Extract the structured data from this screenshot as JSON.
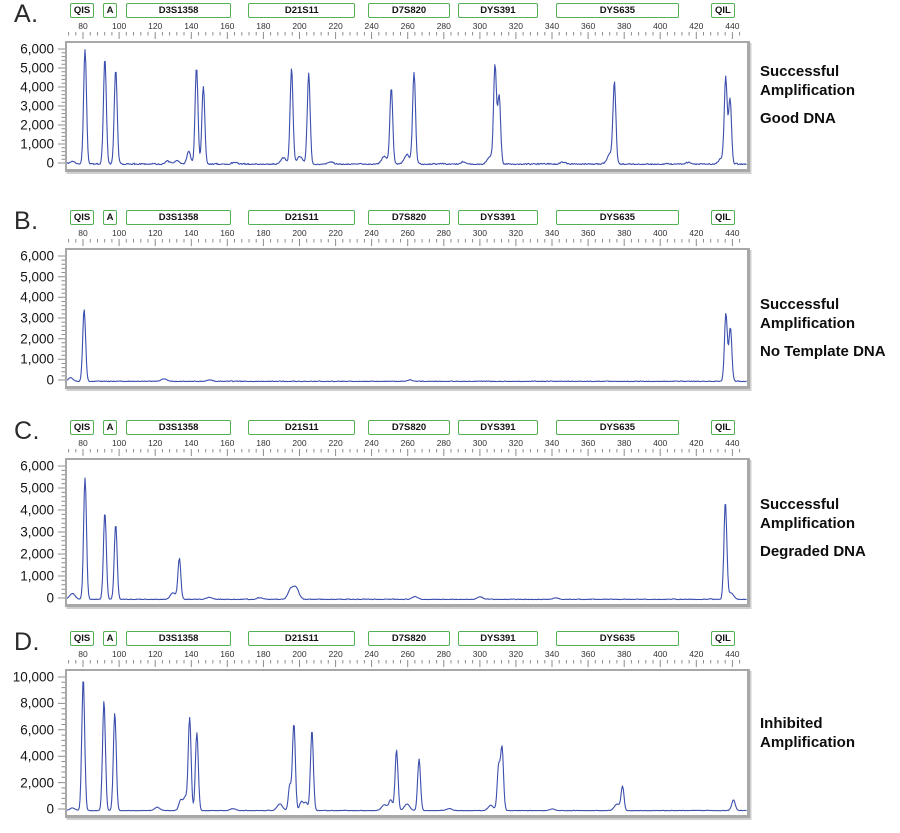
{
  "colors": {
    "trace": "#3c4fae",
    "marker_border": "#52b152",
    "frame_gray": "#a8a8a8",
    "tick_gray": "#8c8c8c"
  },
  "x_axis": {
    "domain": [
      70,
      447
    ],
    "tick_values": [
      80,
      100,
      120,
      140,
      160,
      180,
      200,
      220,
      240,
      260,
      280,
      300,
      320,
      340,
      360,
      380,
      400,
      420,
      440
    ],
    "minor_step": 4
  },
  "markers": [
    {
      "label": "QIS",
      "start": 73,
      "end": 86
    },
    {
      "label": "A",
      "start": 91,
      "end": 99
    },
    {
      "label": "D3S1358",
      "start": 104,
      "end": 162
    },
    {
      "label": "D21S11",
      "start": 171.5,
      "end": 231
    },
    {
      "label": "D7S820",
      "start": 238,
      "end": 283.5
    },
    {
      "label": "DYS391",
      "start": 288,
      "end": 332
    },
    {
      "label": "DYS635",
      "start": 342,
      "end": 410.5
    },
    {
      "label": "QIL",
      "start": 428,
      "end": 441.5
    }
  ],
  "chart_data": [
    {
      "type": "line",
      "panel_label": "A.",
      "annotation": [
        "Successful Amplification",
        "Good DNA"
      ],
      "xlim": [
        70,
        447
      ],
      "ylim": [
        0,
        6000
      ],
      "y_tick_labels": [
        "6,000",
        "5,000",
        "4,000",
        "3,000",
        "2,000",
        "1,000",
        "0"
      ],
      "y_tick_values": [
        6000,
        5000,
        4000,
        3000,
        2000,
        1000,
        0
      ],
      "grid": false,
      "noise_amp": 120,
      "seed": 7,
      "peaks": [
        [
          73,
          160
        ],
        [
          80,
          6000
        ],
        [
          91,
          5550
        ],
        [
          97,
          5000
        ],
        [
          126,
          130
        ],
        [
          131,
          180
        ],
        [
          137.5,
          700
        ],
        [
          141.8,
          5100
        ],
        [
          145.6,
          4100
        ],
        [
          163,
          90
        ],
        [
          190,
          330
        ],
        [
          194.5,
          5050
        ],
        [
          199,
          400
        ],
        [
          204,
          4800
        ],
        [
          216,
          120
        ],
        [
          246,
          420
        ],
        [
          249.8,
          4000
        ],
        [
          258.5,
          480
        ],
        [
          262.4,
          4800
        ],
        [
          290,
          120
        ],
        [
          304.5,
          380
        ],
        [
          307.3,
          5150
        ],
        [
          309.6,
          3600
        ],
        [
          345,
          100
        ],
        [
          371,
          550
        ],
        [
          373.5,
          4200
        ],
        [
          415,
          90
        ],
        [
          432.8,
          300
        ],
        [
          435.2,
          4500
        ],
        [
          437.6,
          3450
        ]
      ]
    },
    {
      "type": "line",
      "panel_label": "B.",
      "annotation": [
        "Successful Amplification",
        "No Template DNA"
      ],
      "xlim": [
        70,
        447
      ],
      "ylim": [
        0,
        6000
      ],
      "y_tick_labels": [
        "6,000",
        "5,000",
        "4,000",
        "3,000",
        "2,000",
        "1,000",
        "0"
      ],
      "y_tick_values": [
        6000,
        5000,
        4000,
        3000,
        2000,
        1000,
        0
      ],
      "grid": false,
      "noise_amp": 60,
      "seed": 13,
      "peaks": [
        [
          72,
          150
        ],
        [
          79.5,
          3500
        ],
        [
          124,
          120
        ],
        [
          149,
          70
        ],
        [
          260,
          60
        ],
        [
          435.3,
          3300
        ],
        [
          437.8,
          2600
        ]
      ]
    },
    {
      "type": "line",
      "panel_label": "C.",
      "annotation": [
        "Successful Amplification",
        "Degraded DNA"
      ],
      "xlim": [
        70,
        447
      ],
      "ylim": [
        0,
        6000
      ],
      "y_tick_labels": [
        "6,000",
        "5,000",
        "4,000",
        "3,000",
        "2,000",
        "1,000",
        "0"
      ],
      "y_tick_values": [
        6000,
        5000,
        4000,
        3000,
        2000,
        1000,
        0
      ],
      "grid": false,
      "noise_amp": 55,
      "seed": 29,
      "peaks": [
        [
          73,
          260
        ],
        [
          80,
          5500
        ],
        [
          91,
          3950
        ],
        [
          97,
          3400
        ],
        [
          128.8,
          300
        ],
        [
          132.3,
          1850
        ],
        [
          149,
          90
        ],
        [
          177,
          70
        ],
        [
          194,
          450
        ],
        [
          197,
          520
        ],
        [
          263,
          130
        ],
        [
          299,
          110
        ],
        [
          341,
          70
        ],
        [
          435,
          4400
        ],
        [
          438,
          300
        ]
      ]
    },
    {
      "type": "line",
      "panel_label": "D.",
      "annotation": [
        "Inhibited Amplification",
        ""
      ],
      "xlim": [
        70,
        447
      ],
      "ylim": [
        0,
        10000
      ],
      "y_tick_labels": [
        "10,000",
        "8,000",
        "6,000",
        "4,000",
        "2,000",
        "0"
      ],
      "y_tick_values": [
        10000,
        8000,
        6000,
        4000,
        2000,
        0
      ],
      "grid": false,
      "noise_amp": 60,
      "seed": 41,
      "peaks": [
        [
          73,
          200
        ],
        [
          79,
          10050
        ],
        [
          90.5,
          8300
        ],
        [
          96.5,
          7400
        ],
        [
          120,
          250
        ],
        [
          133,
          800
        ],
        [
          135.5,
          1000
        ],
        [
          138,
          7000
        ],
        [
          142,
          5900
        ],
        [
          162,
          150
        ],
        [
          188,
          500
        ],
        [
          193.5,
          1900
        ],
        [
          195.8,
          6600
        ],
        [
          200,
          700
        ],
        [
          202.5,
          600
        ],
        [
          205.8,
          6100
        ],
        [
          246,
          450
        ],
        [
          249.5,
          800
        ],
        [
          252.7,
          4600
        ],
        [
          258.5,
          500
        ],
        [
          265.2,
          3900
        ],
        [
          282,
          150
        ],
        [
          305,
          400
        ],
        [
          309.3,
          3300
        ],
        [
          311.2,
          4700
        ],
        [
          339,
          120
        ],
        [
          375,
          500
        ],
        [
          378,
          1800
        ],
        [
          439.5,
          800
        ]
      ]
    }
  ]
}
